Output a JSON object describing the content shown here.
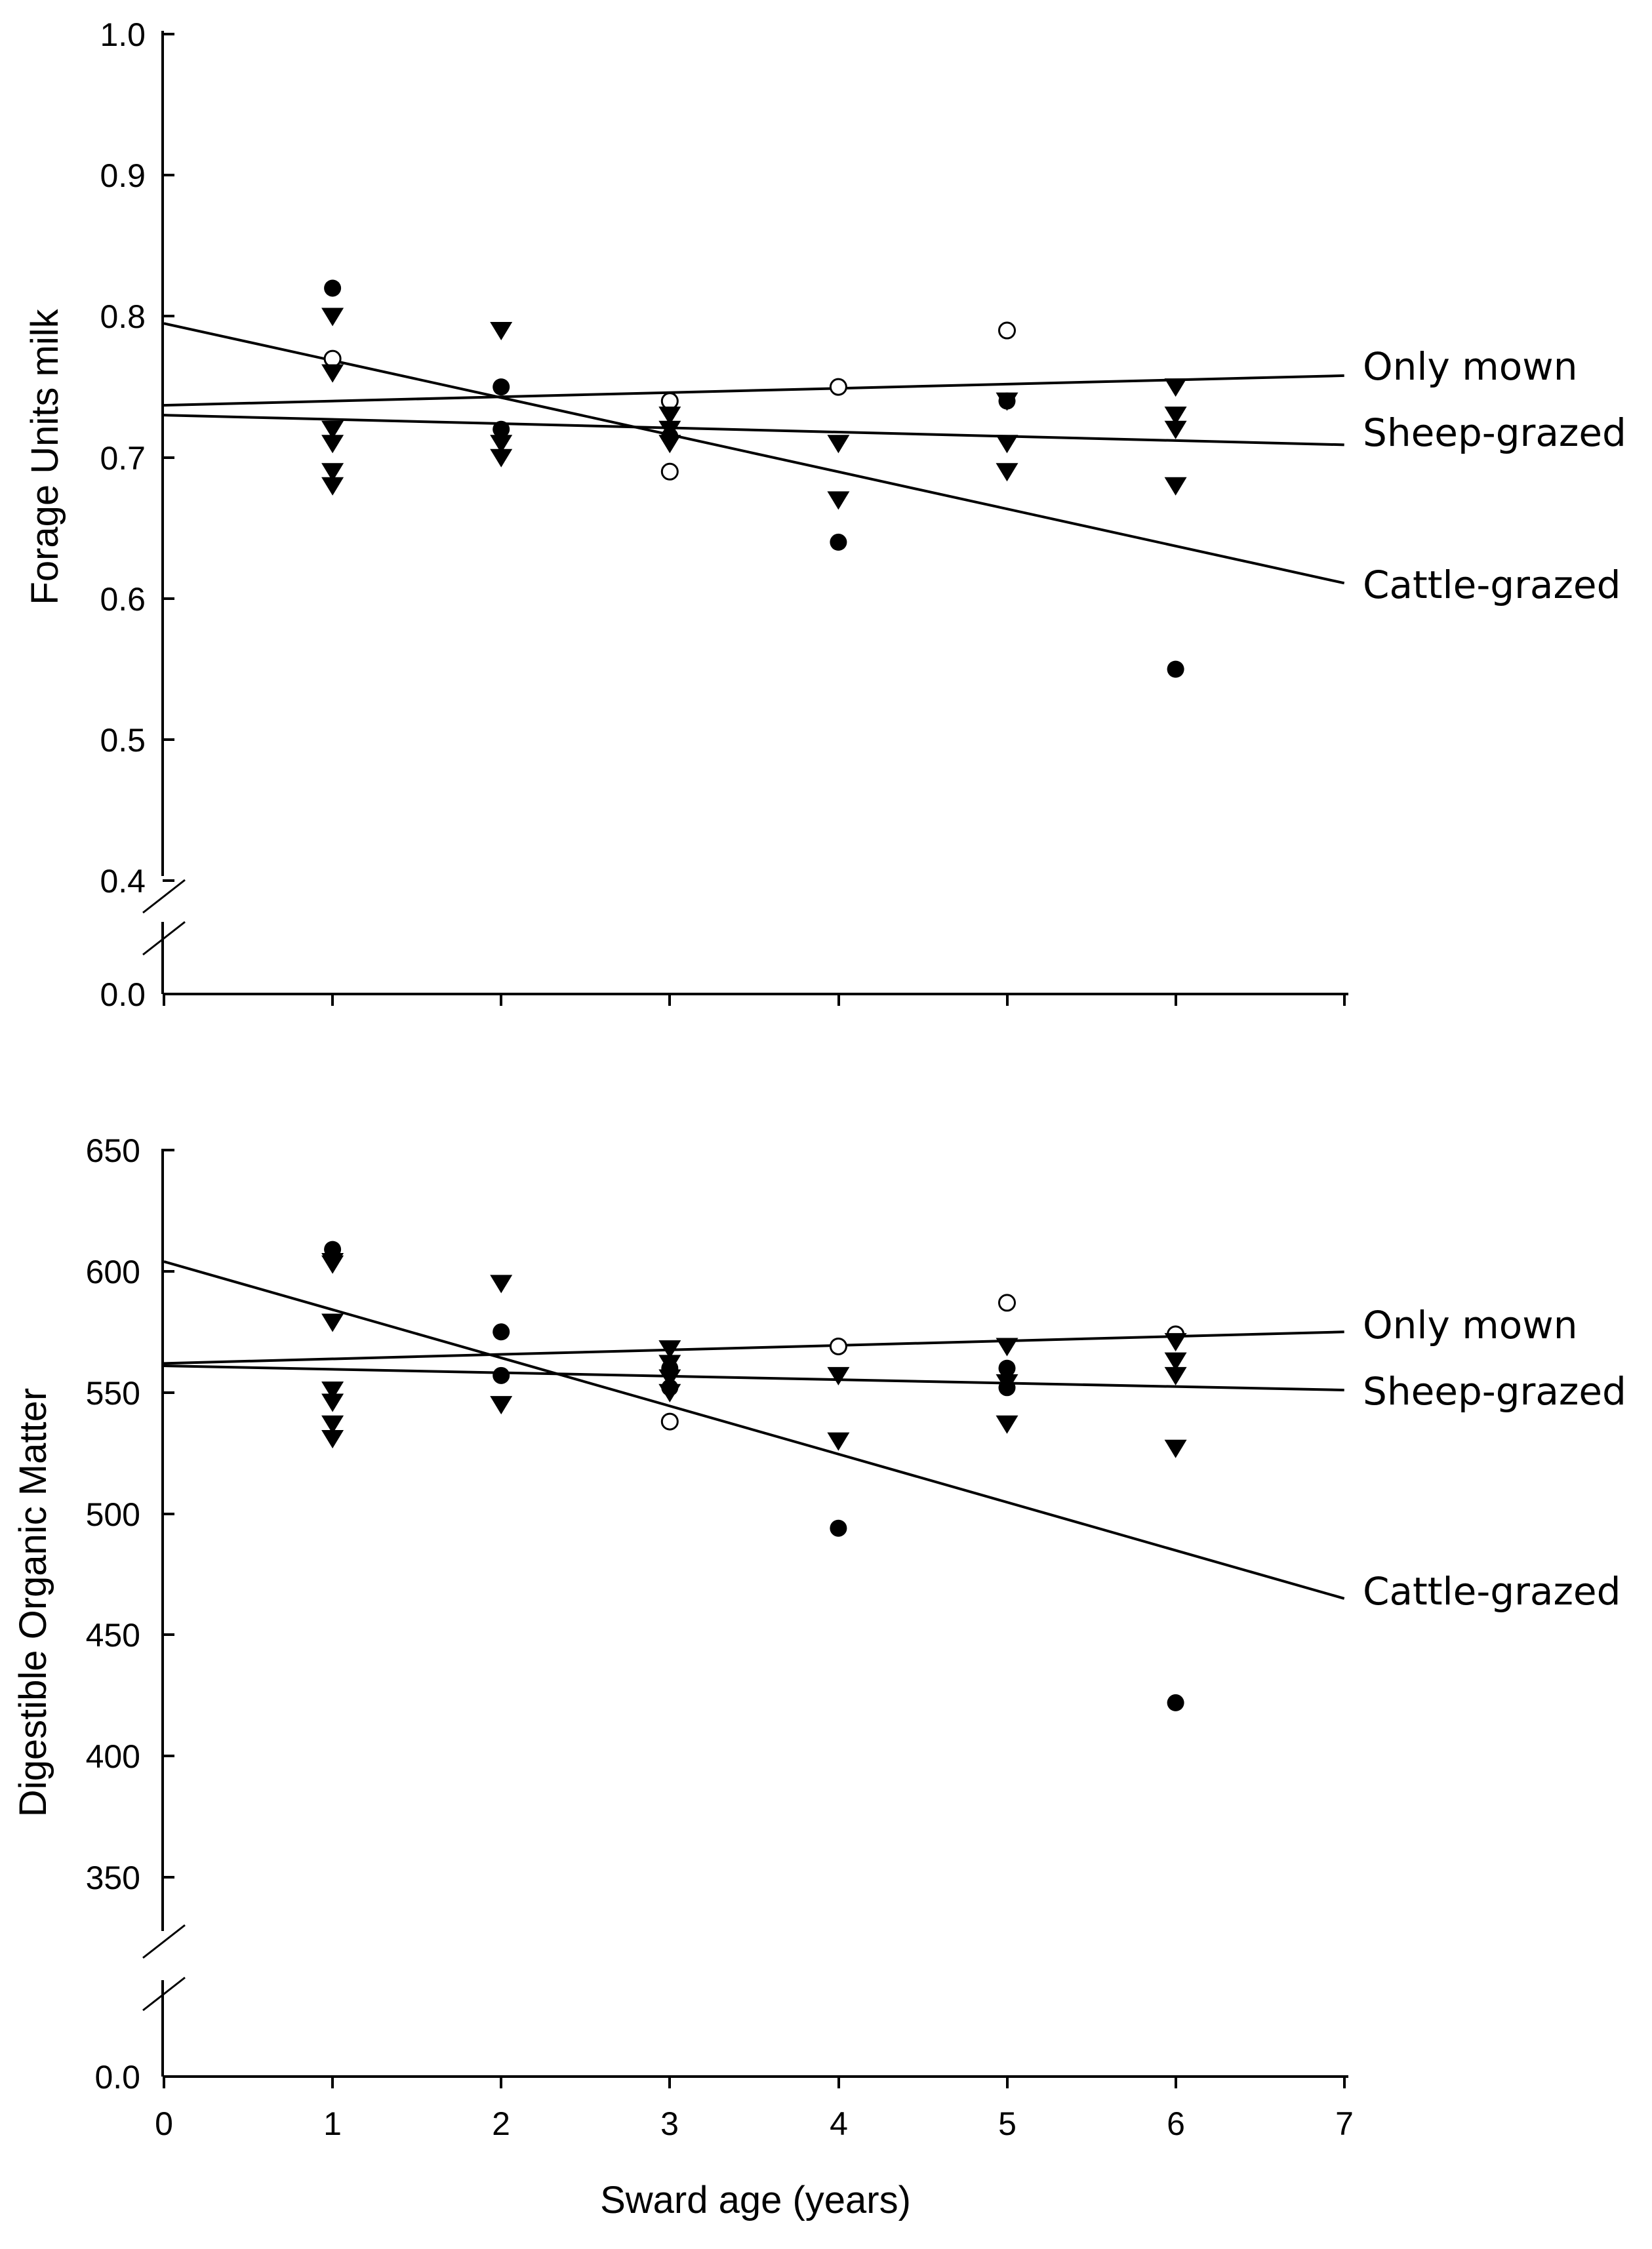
{
  "xlabel": "Sward age (years)",
  "chart_data": [
    {
      "type": "scatter",
      "title": "",
      "ylabel": "Forage Units milk",
      "xlim": [
        0,
        7
      ],
      "ylim": [
        0.4,
        1.0
      ],
      "y_break": {
        "below": 0.4,
        "bottom_value": 0.0
      },
      "x_ticks": [
        0,
        1,
        2,
        3,
        4,
        5,
        6,
        7
      ],
      "y_ticks": [
        0.4,
        0.5,
        0.6,
        0.7,
        0.8,
        0.9,
        1.0
      ],
      "y_tick_labels": [
        "0.4",
        "0.5",
        "0.6",
        "0.7",
        "0.8",
        "0.9",
        "1.0"
      ],
      "bottom_tick_label": "0.0",
      "series": [
        {
          "name": "Cattle-grazed",
          "marker": "filled-circle",
          "x": [
            1,
            2,
            2,
            3,
            4,
            5,
            6
          ],
          "y": [
            0.82,
            0.75,
            0.72,
            0.715,
            0.64,
            0.74,
            0.55
          ]
        },
        {
          "name": "Only mown",
          "marker": "open-circle",
          "x": [
            1,
            3,
            3,
            4,
            5
          ],
          "y": [
            0.77,
            0.74,
            0.69,
            0.75,
            0.79
          ]
        },
        {
          "name": "Sheep-grazed",
          "marker": "filled-triangle-down",
          "x": [
            1,
            1,
            1,
            1,
            1,
            1,
            2,
            2,
            2,
            3,
            3,
            3,
            4,
            4,
            5,
            5,
            5,
            6,
            6,
            6,
            6
          ],
          "y": [
            0.8,
            0.76,
            0.72,
            0.71,
            0.69,
            0.68,
            0.79,
            0.71,
            0.7,
            0.73,
            0.72,
            0.71,
            0.71,
            0.67,
            0.74,
            0.71,
            0.69,
            0.75,
            0.73,
            0.72,
            0.68
          ]
        }
      ],
      "regression_lines": [
        {
          "name": "Only mown",
          "label": "Only mown",
          "x": [
            0,
            7
          ],
          "y": [
            0.737,
            0.758
          ]
        },
        {
          "name": "Sheep-grazed",
          "label": "Sheep-grazed",
          "x": [
            0,
            7
          ],
          "y": [
            0.73,
            0.709
          ]
        },
        {
          "name": "Cattle-grazed",
          "label": "Cattle-grazed",
          "x": [
            0,
            7
          ],
          "y": [
            0.795,
            0.611
          ]
        }
      ]
    },
    {
      "type": "scatter",
      "title": "",
      "ylabel": "Digestible Organic Matter",
      "xlim": [
        0,
        7
      ],
      "ylim": [
        325,
        650
      ],
      "y_break": {
        "below": 325,
        "bottom_value": 0.0
      },
      "x_ticks": [
        0,
        1,
        2,
        3,
        4,
        5,
        6,
        7
      ],
      "x_tick_labels": [
        "0",
        "1",
        "2",
        "3",
        "4",
        "5",
        "6",
        "7"
      ],
      "y_ticks": [
        350,
        400,
        450,
        500,
        550,
        600,
        650
      ],
      "y_tick_labels": [
        "350",
        "400",
        "450",
        "500",
        "550",
        "600",
        "650"
      ],
      "bottom_tick_label": "0.0",
      "series": [
        {
          "name": "Cattle-grazed",
          "marker": "filled-circle",
          "x": [
            1,
            2,
            2,
            3,
            3,
            4,
            5,
            5,
            6
          ],
          "y": [
            609,
            575,
            557,
            560,
            552,
            494,
            560,
            552,
            422
          ]
        },
        {
          "name": "Only mown",
          "marker": "open-circle",
          "x": [
            3,
            4,
            5,
            6
          ],
          "y": [
            538,
            569,
            587,
            574
          ]
        },
        {
          "name": "Sheep-grazed",
          "marker": "filled-triangle-down",
          "x": [
            1,
            1,
            1,
            1,
            1,
            1,
            1,
            2,
            2,
            3,
            3,
            3,
            3,
            4,
            4,
            5,
            5,
            5,
            6,
            6,
            6,
            6
          ],
          "y": [
            604,
            579,
            551,
            546,
            537,
            531,
            603,
            595,
            545,
            568,
            562,
            556,
            550,
            557,
            530,
            569,
            554,
            537,
            571,
            563,
            557,
            527
          ]
        }
      ],
      "regression_lines": [
        {
          "name": "Only mown",
          "label": "Only mown",
          "x": [
            0,
            7
          ],
          "y": [
            562,
            575
          ]
        },
        {
          "name": "Sheep-grazed",
          "label": "Sheep-grazed",
          "x": [
            0,
            7
          ],
          "y": [
            561,
            551
          ]
        },
        {
          "name": "Cattle-grazed",
          "label": "Cattle-grazed",
          "x": [
            0,
            7
          ],
          "y": [
            604,
            465
          ]
        }
      ]
    }
  ]
}
